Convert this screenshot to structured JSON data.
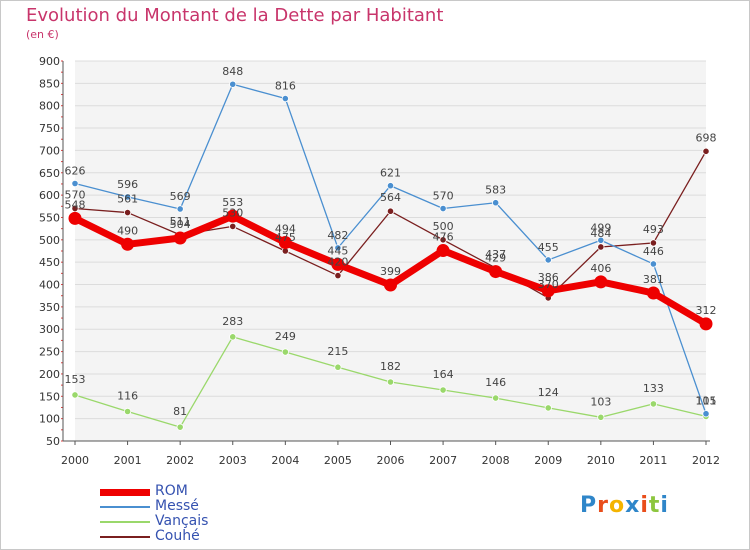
{
  "chart_data": {
    "type": "line",
    "title": "Evolution du Montant de la Dette par Habitant",
    "subtitle": "(en €)",
    "x": [
      "2000",
      "2001",
      "2002",
      "2003",
      "2004",
      "2005",
      "2006",
      "2007",
      "2008",
      "2009",
      "2010",
      "2011",
      "2012"
    ],
    "ylim": [
      50,
      900
    ],
    "yticks": [
      50,
      100,
      150,
      200,
      250,
      300,
      350,
      400,
      450,
      500,
      550,
      600,
      650,
      700,
      750,
      800,
      850,
      900
    ],
    "grid": "horizontal",
    "legend_position": "bottom-left",
    "series": [
      {
        "name": "ROM",
        "color": "#ee0000",
        "values": [
          548,
          490,
          504,
          553,
          494,
          445,
          399,
          476,
          429,
          386,
          406,
          381,
          312
        ],
        "labels": [
          "548",
          "490",
          "504",
          "553",
          "494",
          "445",
          "399",
          "476",
          "429",
          "386",
          "406",
          "381",
          "312"
        ]
      },
      {
        "name": "Messé",
        "color": "#4a8fd0",
        "values": [
          626,
          596,
          569,
          848,
          816,
          482,
          621,
          570,
          583,
          455,
          499,
          446,
          111
        ],
        "labels": [
          "626",
          "596",
          "569",
          "848",
          "816",
          "482",
          "621",
          "570",
          "583",
          "455",
          "499",
          "446",
          "111"
        ]
      },
      {
        "name": "Vançais",
        "color": "#9ad86b",
        "values": [
          153,
          116,
          81,
          283,
          249,
          215,
          182,
          164,
          146,
          124,
          103,
          133,
          105
        ],
        "labels": [
          "153",
          "116",
          "81",
          "283",
          "249",
          "215",
          "182",
          "164",
          "146",
          "124",
          "103",
          "133",
          "105"
        ]
      },
      {
        "name": "Couhé",
        "color": "#7a1f1f",
        "values": [
          570,
          561,
          511,
          530,
          475,
          420,
          564,
          500,
          437,
          370,
          484,
          493,
          698
        ],
        "labels": [
          "570",
          "561",
          "511",
          "530",
          "475",
          "420",
          "564",
          "500",
          "437",
          "370",
          "484",
          "493",
          "698"
        ]
      }
    ]
  },
  "logo": {
    "text": "Proxiti",
    "colors": [
      "#2f86c9",
      "#e94e1b",
      "#f4b400",
      "#2f86c9",
      "#e94e1b",
      "#8dc63f",
      "#2f86c9"
    ]
  }
}
